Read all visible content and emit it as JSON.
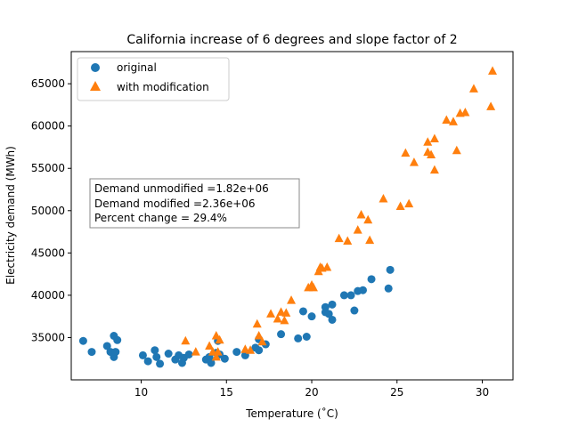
{
  "chart_data": {
    "type": "scatter",
    "title": "California increase of 6 degrees and slope factor of 2",
    "xlabel": "Temperature (˚C)",
    "ylabel": "Electricity demand (MWh)",
    "xlim": [
      5.9,
      31.8
    ],
    "ylim": [
      30000,
      68800
    ],
    "xticks": [
      10,
      15,
      20,
      25,
      30
    ],
    "xtick_labels": [
      "10",
      "15",
      "20",
      "25",
      "30"
    ],
    "yticks": [
      35000,
      40000,
      45000,
      50000,
      55000,
      60000,
      65000
    ],
    "ytick_labels": [
      "35000",
      "40000",
      "45000",
      "50000",
      "55000",
      "60000",
      "65000"
    ],
    "grid": false,
    "legend_position": "top-left",
    "annotation": [
      "Demand unmodified =1.82e+06",
      "Demand modified =2.36e+06",
      "Percent change = 29.4%"
    ],
    "series": [
      {
        "name": "original",
        "marker": "circle",
        "color": "#1f77b4",
        "points": [
          [
            6.6,
            34600
          ],
          [
            7.1,
            33300
          ],
          [
            8.0,
            34000
          ],
          [
            8.2,
            33300
          ],
          [
            8.4,
            35200
          ],
          [
            8.4,
            32700
          ],
          [
            8.6,
            34700
          ],
          [
            8.5,
            33300
          ],
          [
            10.1,
            32900
          ],
          [
            10.4,
            32200
          ],
          [
            10.8,
            33500
          ],
          [
            10.9,
            32700
          ],
          [
            11.1,
            31900
          ],
          [
            11.6,
            33100
          ],
          [
            12.0,
            32400
          ],
          [
            12.2,
            32900
          ],
          [
            12.4,
            32000
          ],
          [
            12.5,
            32600
          ],
          [
            12.8,
            33000
          ],
          [
            13.8,
            32400
          ],
          [
            14.0,
            32700
          ],
          [
            14.1,
            32000
          ],
          [
            14.4,
            33200
          ],
          [
            14.5,
            34600
          ],
          [
            14.6,
            33000
          ],
          [
            14.9,
            32500
          ],
          [
            15.6,
            33300
          ],
          [
            16.1,
            32900
          ],
          [
            16.7,
            33800
          ],
          [
            16.9,
            34800
          ],
          [
            16.9,
            33500
          ],
          [
            17.3,
            34200
          ],
          [
            18.2,
            35400
          ],
          [
            19.2,
            34900
          ],
          [
            19.5,
            38100
          ],
          [
            19.7,
            35100
          ],
          [
            20.0,
            37500
          ],
          [
            20.8,
            38600
          ],
          [
            20.8,
            38000
          ],
          [
            21.0,
            37800
          ],
          [
            21.2,
            38900
          ],
          [
            21.2,
            37100
          ],
          [
            21.9,
            40000
          ],
          [
            22.3,
            40000
          ],
          [
            22.5,
            38200
          ],
          [
            22.7,
            40500
          ],
          [
            23.0,
            40600
          ],
          [
            23.5,
            41900
          ],
          [
            24.5,
            40800
          ],
          [
            24.6,
            43000
          ]
        ]
      },
      {
        "name": "with modification",
        "marker": "triangle",
        "color": "#ff7f0e",
        "points": [
          [
            12.6,
            34600
          ],
          [
            13.2,
            33300
          ],
          [
            14.0,
            34000
          ],
          [
            14.2,
            33300
          ],
          [
            14.4,
            35200
          ],
          [
            14.4,
            32700
          ],
          [
            14.6,
            34700
          ],
          [
            14.5,
            33300
          ],
          [
            16.1,
            33600
          ],
          [
            16.4,
            33500
          ],
          [
            16.8,
            36600
          ],
          [
            16.9,
            35200
          ],
          [
            17.1,
            34500
          ],
          [
            17.6,
            37800
          ],
          [
            18.0,
            37200
          ],
          [
            18.2,
            38000
          ],
          [
            18.4,
            37000
          ],
          [
            18.5,
            37900
          ],
          [
            18.8,
            39400
          ],
          [
            19.8,
            40900
          ],
          [
            20.0,
            41200
          ],
          [
            20.1,
            40900
          ],
          [
            20.4,
            42800
          ],
          [
            20.5,
            43300
          ],
          [
            20.6,
            43200
          ],
          [
            20.9,
            43300
          ],
          [
            21.6,
            46700
          ],
          [
            22.1,
            46400
          ],
          [
            22.7,
            47700
          ],
          [
            22.9,
            49500
          ],
          [
            23.3,
            48900
          ],
          [
            23.4,
            46500
          ],
          [
            24.2,
            51400
          ],
          [
            25.2,
            50500
          ],
          [
            25.5,
            56800
          ],
          [
            25.7,
            50800
          ],
          [
            26.0,
            55700
          ],
          [
            26.8,
            58100
          ],
          [
            26.8,
            56900
          ],
          [
            27.0,
            56600
          ],
          [
            27.2,
            58500
          ],
          [
            27.2,
            54800
          ],
          [
            27.9,
            60700
          ],
          [
            28.3,
            60500
          ],
          [
            28.5,
            57100
          ],
          [
            28.7,
            61500
          ],
          [
            29.0,
            61600
          ],
          [
            29.5,
            64400
          ],
          [
            30.5,
            62300
          ],
          [
            30.6,
            66500
          ]
        ]
      }
    ]
  }
}
